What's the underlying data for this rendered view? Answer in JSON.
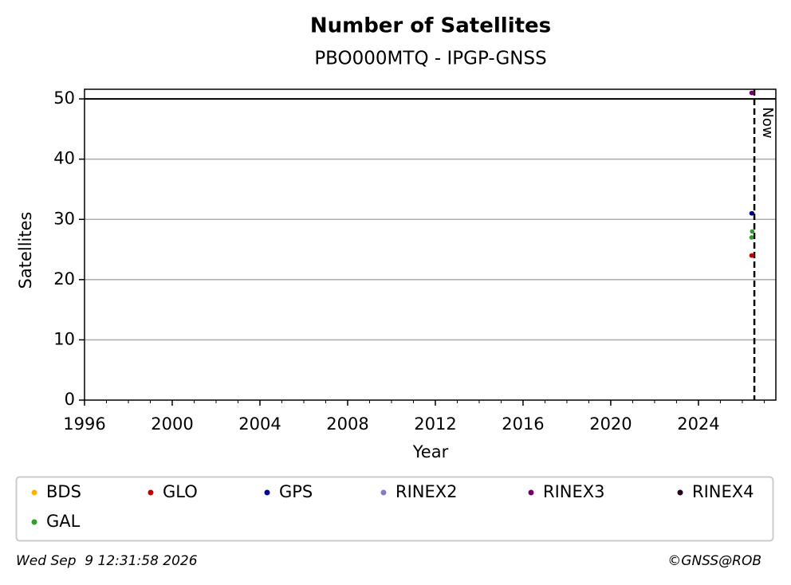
{
  "chart_data": {
    "type": "scatter",
    "title": "Number of Satellites",
    "subtitle": "PBO000MTQ - IPGP-GNSS",
    "x_label": "Year",
    "y_label": "Satellites",
    "xlim": [
      1996,
      2027.53
    ],
    "xticks": [
      1996,
      2000,
      2004,
      2008,
      2012,
      2016,
      2020,
      2024
    ],
    "ylim": [
      0,
      51.6
    ],
    "yticks": [
      0,
      10,
      20,
      30,
      40,
      50
    ],
    "grid": true,
    "reference_line": 50,
    "now": {
      "x": 2026.55,
      "label": "Now"
    },
    "series": [
      {
        "name": "BDS",
        "color": "#ffb000",
        "x": [],
        "values": []
      },
      {
        "name": "GLO",
        "color": "#c00000",
        "x": [
          2026.42,
          2026.45
        ],
        "values": [
          24,
          24
        ]
      },
      {
        "name": "GPS",
        "color": "#000090",
        "x": [
          2026.42,
          2026.45
        ],
        "values": [
          31,
          31
        ]
      },
      {
        "name": "RINEX2",
        "color": "#8878c8",
        "x": [],
        "values": []
      },
      {
        "name": "RINEX3",
        "color": "#700070",
        "x": [
          2026.42,
          2026.45
        ],
        "values": [
          51,
          51
        ]
      },
      {
        "name": "RINEX4",
        "color": "#200020",
        "x": [],
        "values": []
      },
      {
        "name": "GAL",
        "color": "#2ca02c",
        "x": [
          2026.42,
          2026.45
        ],
        "values": [
          27,
          28
        ]
      }
    ],
    "footer_left": "Wed Sep  9 12:31:58 2026",
    "footer_right": "©GNSS@ROB"
  }
}
